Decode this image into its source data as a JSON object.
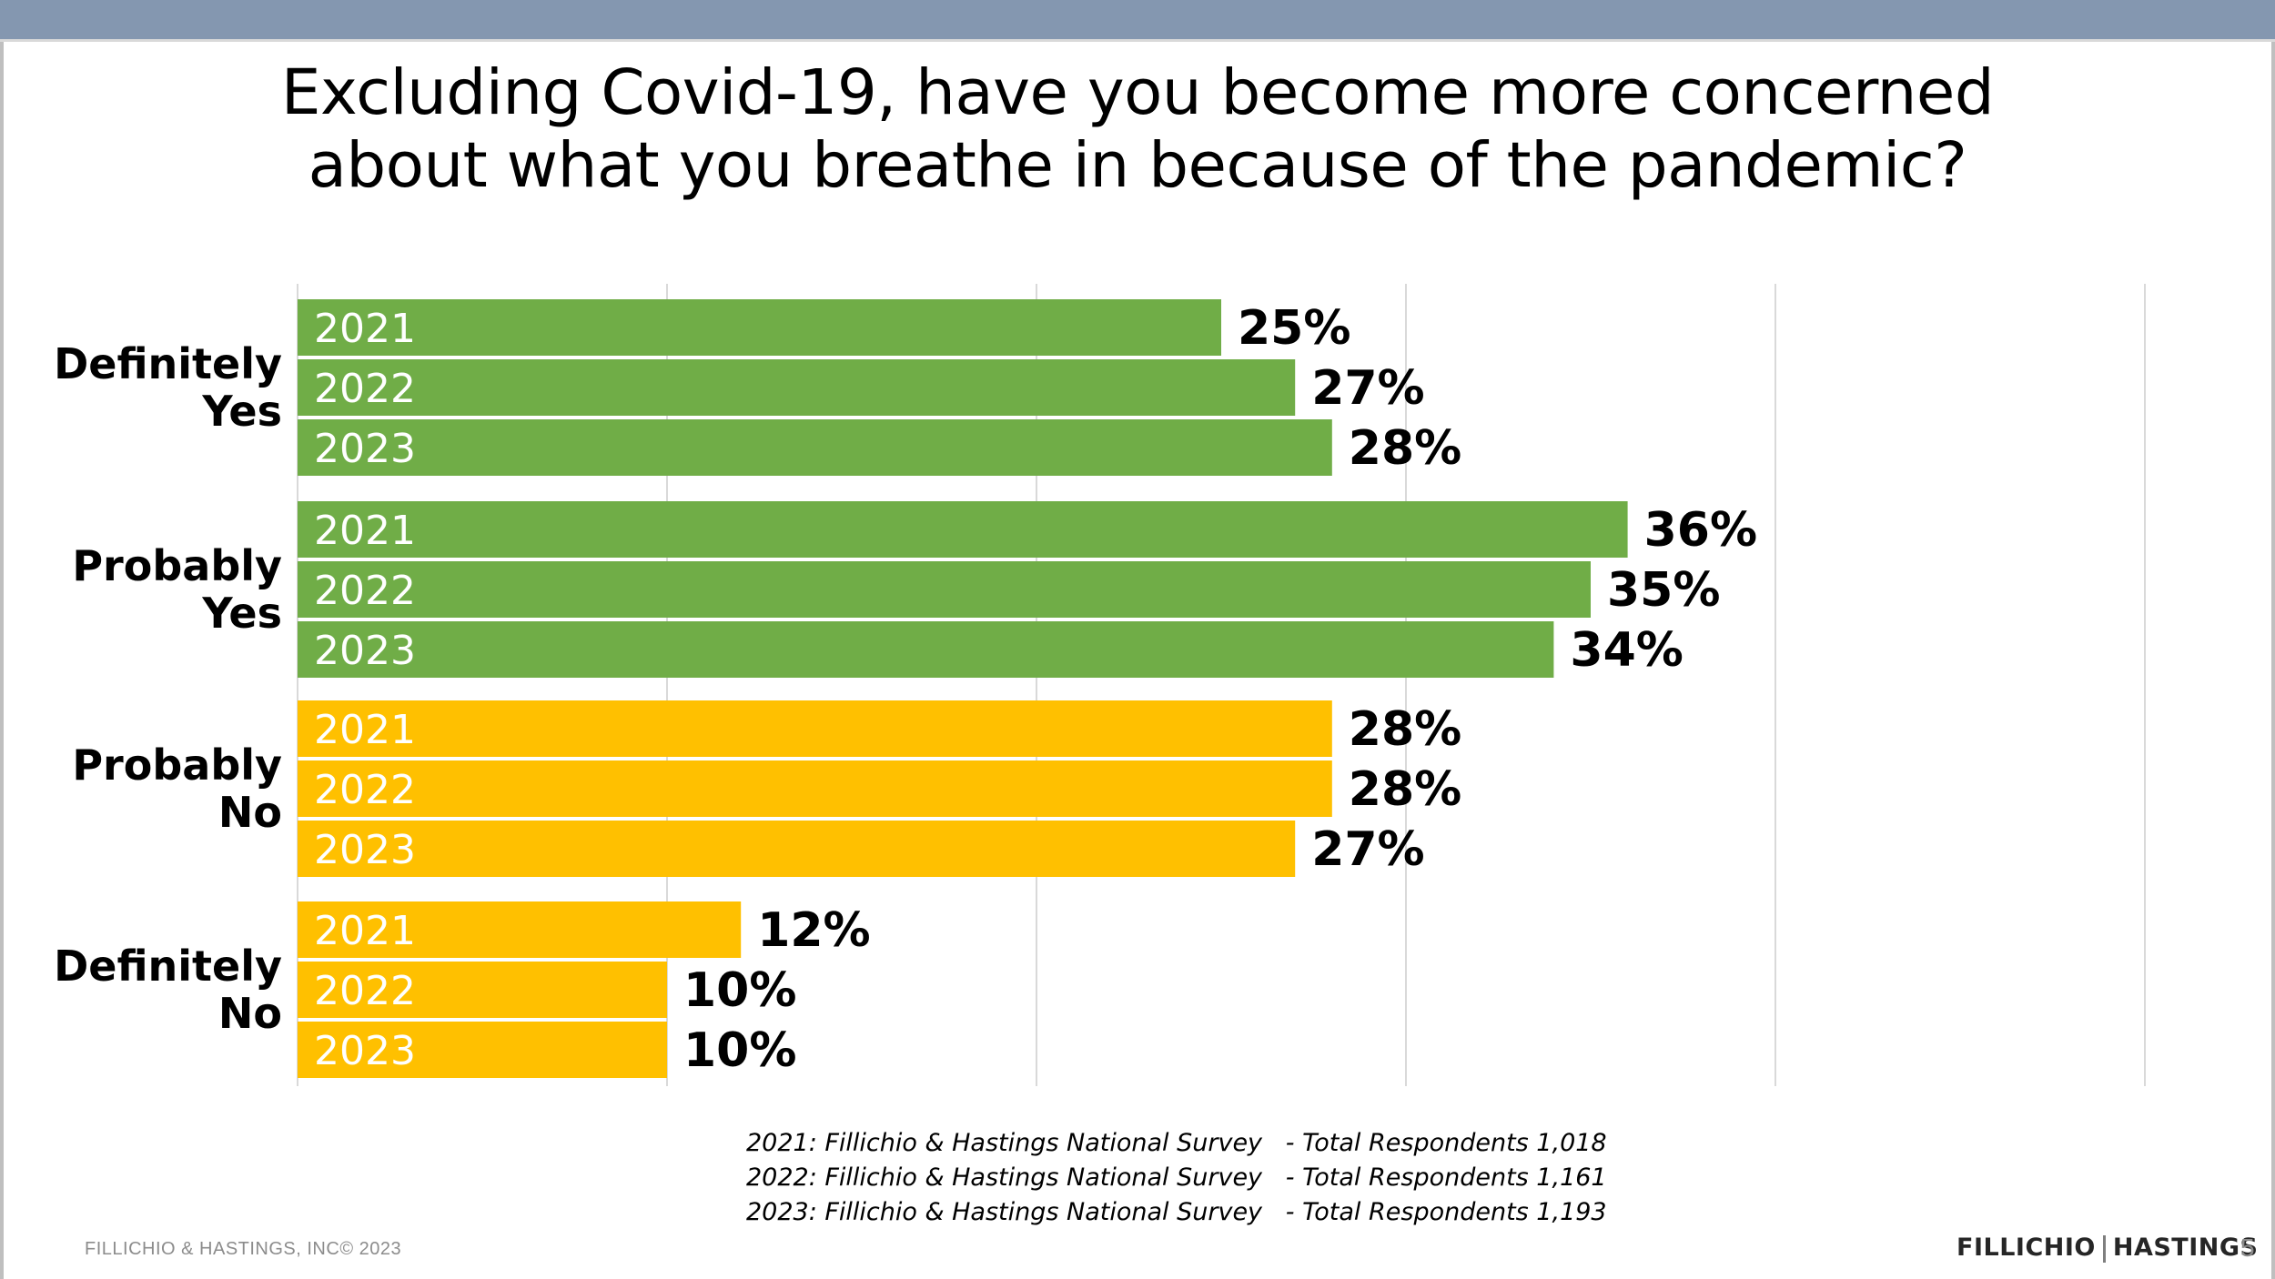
{
  "title_line1": "Excluding Covid-19, have you become more concerned",
  "title_line2": "about what you breathe in because of the pandemic?",
  "colors": {
    "yes": "#70ad47",
    "no": "#ffc000",
    "grid": "#d9d9d9",
    "top_bar": "#8497b0"
  },
  "chart_data": {
    "type": "bar",
    "orientation": "horizontal",
    "categories": [
      "Definitely Yes",
      "Probably Yes",
      "Probably No",
      "Definitely No"
    ],
    "category_labels": [
      [
        "Definitely",
        "Yes"
      ],
      [
        "Probably",
        "Yes"
      ],
      [
        "Probably",
        "No"
      ],
      [
        "Definitely",
        "No"
      ]
    ],
    "series": [
      {
        "name": "2021",
        "values": [
          25,
          36,
          28,
          12
        ]
      },
      {
        "name": "2022",
        "values": [
          27,
          35,
          28,
          10
        ]
      },
      {
        "name": "2023",
        "values": [
          28,
          34,
          27,
          10
        ]
      }
    ],
    "value_suffix": "%",
    "xlim": [
      0,
      50
    ],
    "gridlines": [
      0,
      10,
      20,
      30,
      40,
      50
    ],
    "grid": true,
    "legend": "none; series names drawn inside bars"
  },
  "footnotes": [
    "2021: Fillichio & Hastings National Survey   - Total Respondents 1,018",
    "2022: Fillichio & Hastings National Survey   - Total Respondents 1,161",
    "2023: Fillichio & Hastings National Survey   - Total Respondents 1,193"
  ],
  "footer": {
    "copyright": "FILLICHIO & HASTINGS, INC© 2023",
    "logo_left": "FILLICHIO",
    "logo_right": "HASTINGS",
    "page_number": "5"
  }
}
